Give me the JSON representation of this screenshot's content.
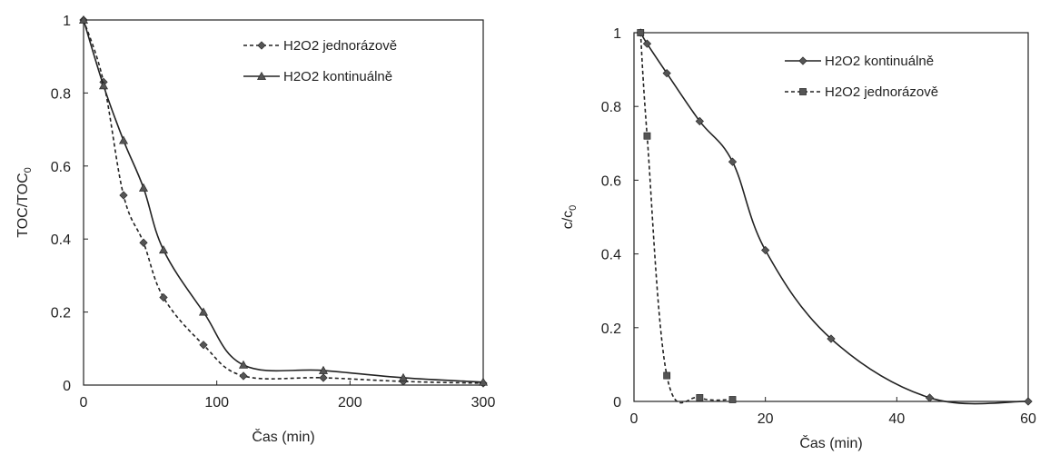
{
  "chart_data": [
    {
      "type": "line",
      "xlabel": "Čas (min)",
      "ylabel_main": "TOC/TOC",
      "ylabel_sub": "0",
      "xlim": [
        0,
        300
      ],
      "ylim": [
        0,
        1
      ],
      "xticks": [
        "0",
        "100",
        "200",
        "300"
      ],
      "yticks": [
        "0",
        "0.2",
        "0.4",
        "0.6",
        "0.8",
        "1"
      ],
      "grid": false,
      "legend_position": "top-right",
      "series": [
        {
          "name": "H2O2 jednorázově",
          "line_style": "dashed",
          "marker": "diamond",
          "x": [
            0,
            15,
            30,
            45,
            60,
            90,
            120,
            180,
            240,
            300
          ],
          "y": [
            1.0,
            0.83,
            0.52,
            0.39,
            0.24,
            0.11,
            0.025,
            0.02,
            0.01,
            0.005
          ]
        },
        {
          "name": "H2O2 kontinuálně",
          "line_style": "solid",
          "marker": "triangle",
          "x": [
            0,
            15,
            30,
            45,
            60,
            90,
            120,
            180,
            240,
            300
          ],
          "y": [
            1.0,
            0.82,
            0.67,
            0.54,
            0.37,
            0.2,
            0.055,
            0.04,
            0.02,
            0.008
          ]
        }
      ]
    },
    {
      "type": "line",
      "xlabel": "Čas (min)",
      "ylabel_main": "c/c",
      "ylabel_sub": "0",
      "xlim": [
        0,
        60
      ],
      "ylim": [
        0,
        1
      ],
      "xticks": [
        "0",
        "20",
        "40",
        "60"
      ],
      "yticks": [
        "0",
        "0.2",
        "0.4",
        "0.6",
        "0.8",
        "1"
      ],
      "grid": false,
      "legend_position": "top-right",
      "series": [
        {
          "name": "H2O2 kontinuálně",
          "line_style": "solid",
          "marker": "diamond",
          "x": [
            1,
            2,
            5,
            10,
            15,
            20,
            30,
            45,
            60
          ],
          "y": [
            1.0,
            0.97,
            0.89,
            0.76,
            0.65,
            0.41,
            0.17,
            0.01,
            0.0
          ]
        },
        {
          "name": "H2O2 jednorázově",
          "line_style": "dashed",
          "marker": "square",
          "x": [
            1,
            2,
            5,
            10,
            15
          ],
          "y": [
            1.0,
            0.72,
            0.07,
            0.01,
            0.005
          ]
        }
      ]
    }
  ]
}
